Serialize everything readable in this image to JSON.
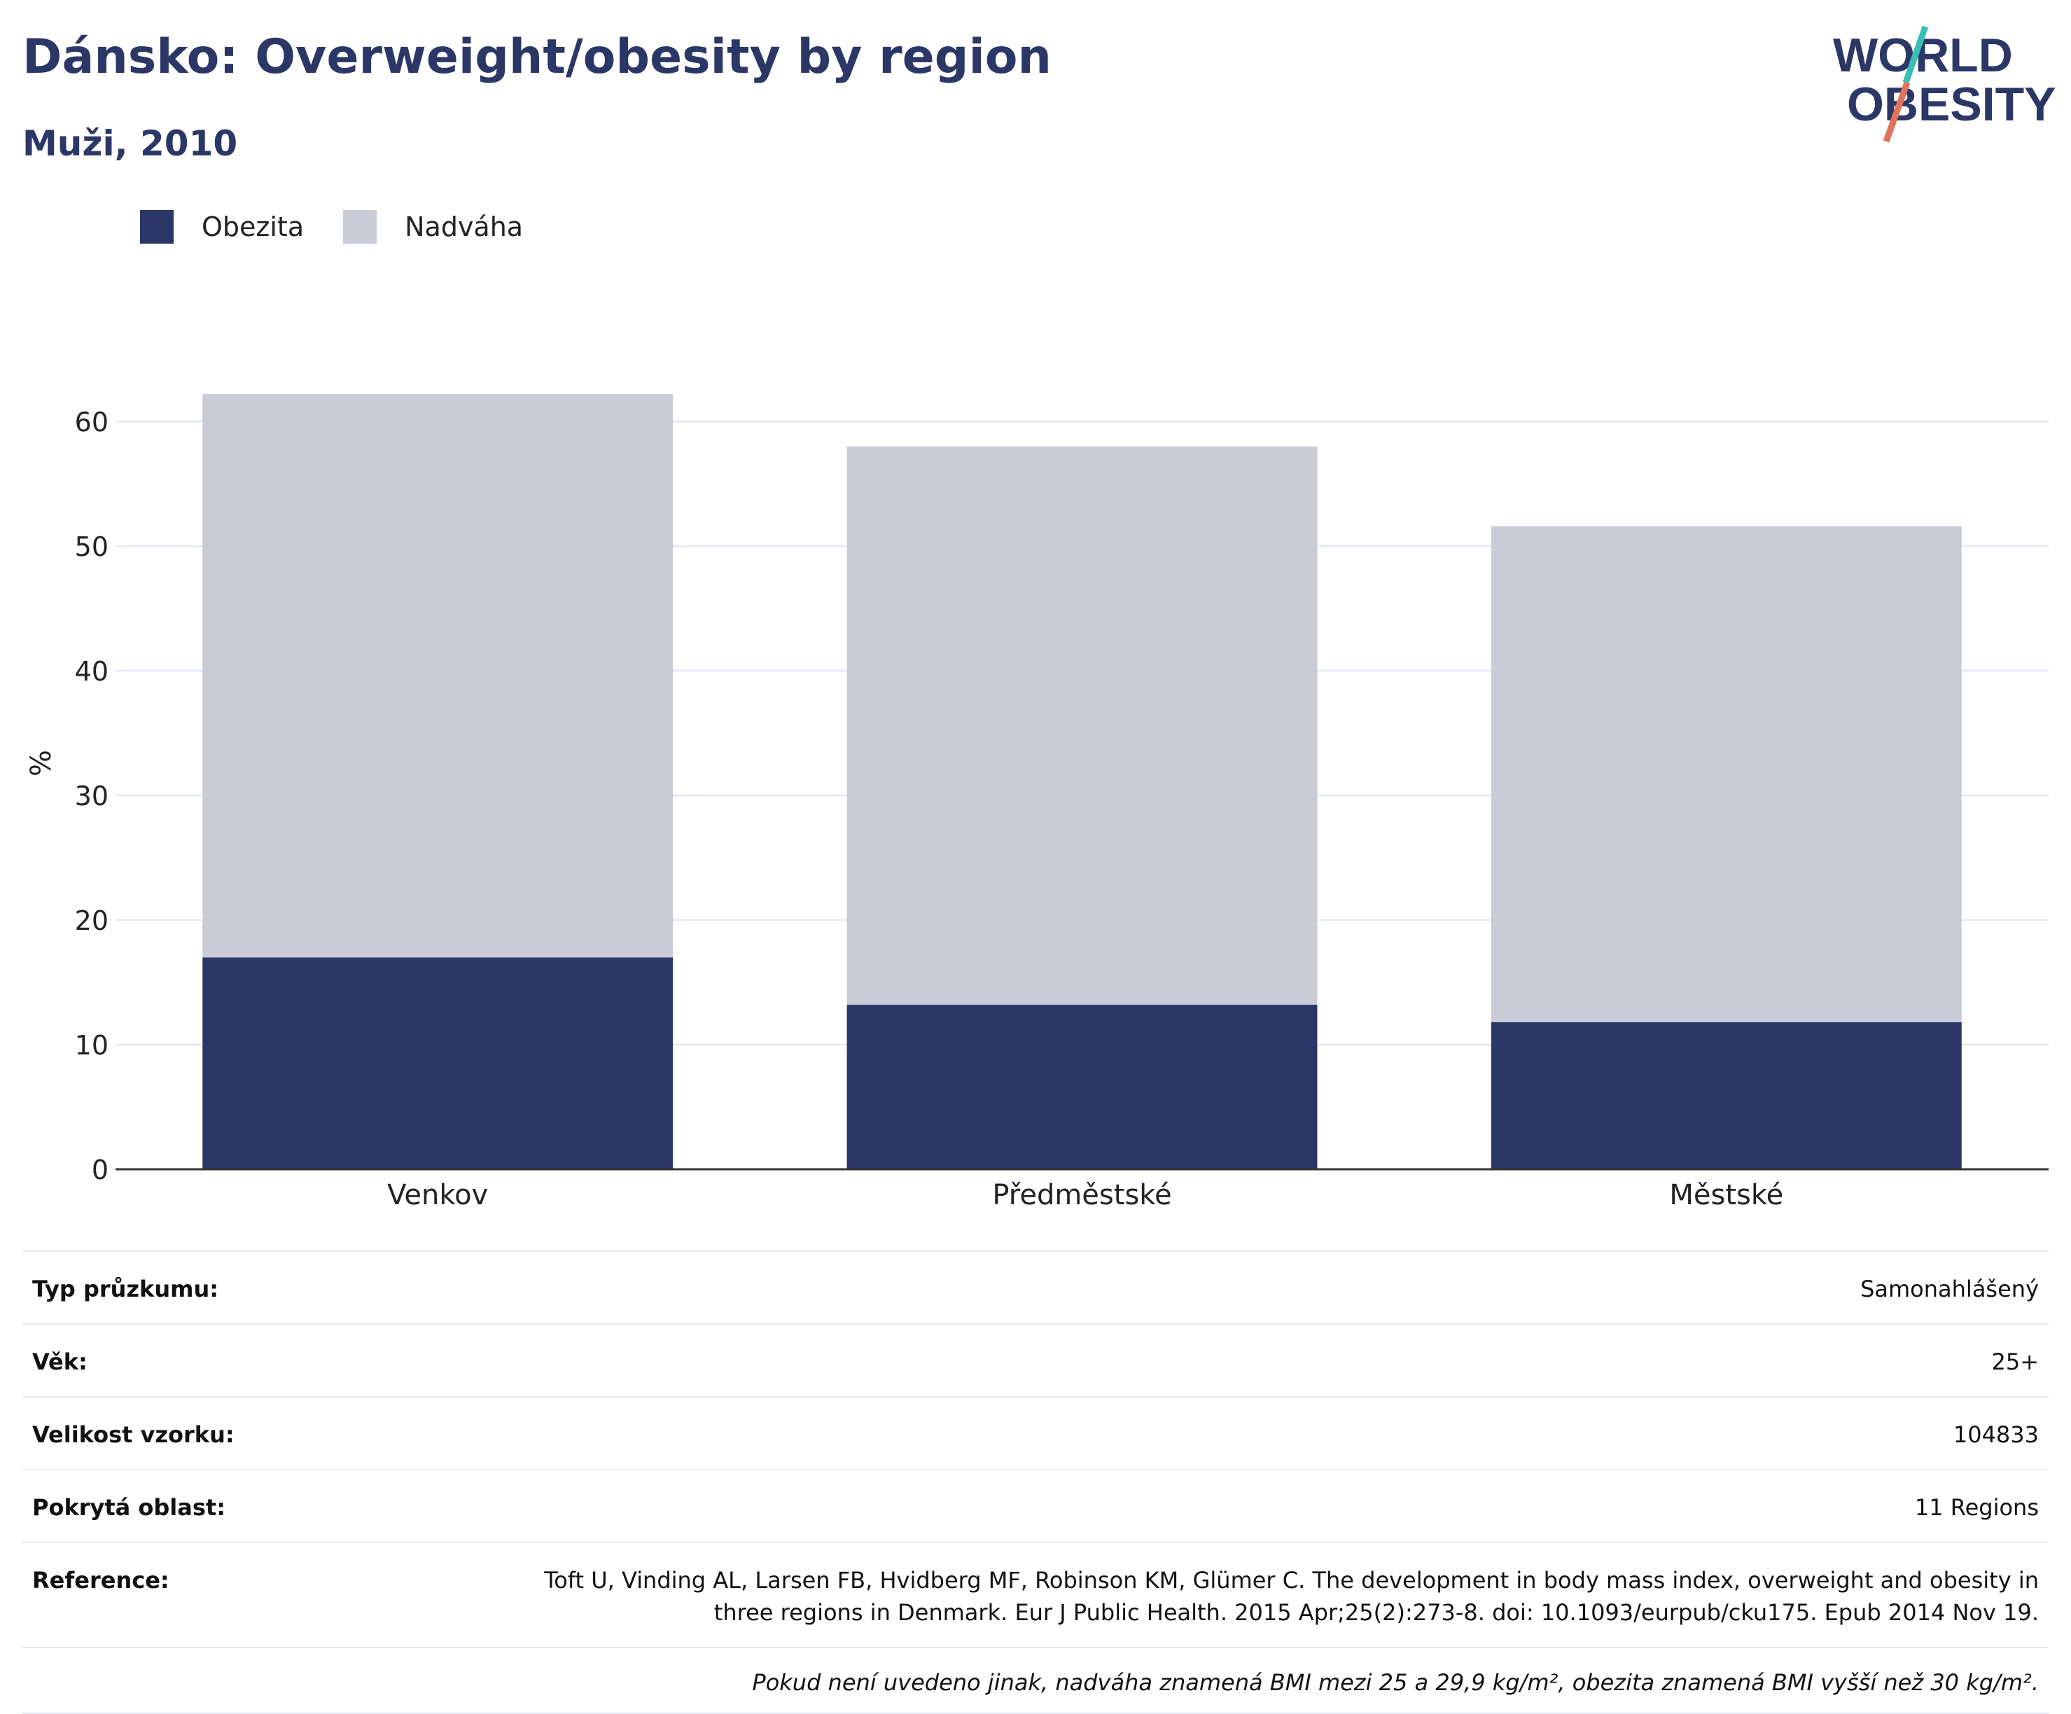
{
  "header": {
    "title": "Dánsko: Overweight/obesity by region",
    "subtitle": "Muži, 2010"
  },
  "logo": {
    "line1": "WORLD",
    "line2": "OBESITY",
    "colors": {
      "text": "#2b3766",
      "slash_top": "#3bbfb5",
      "slash_bottom": "#e2725b"
    }
  },
  "colors": {
    "obesity": "#2b3766",
    "overweight": "#c9cbd7",
    "grid": "#e6e9f0",
    "axis": "#333333"
  },
  "chart_data": {
    "type": "bar",
    "stacked": true,
    "categories": [
      "Venkov",
      "Předměstské",
      "Městské"
    ],
    "series": [
      {
        "name": "Obezita",
        "values": [
          17.0,
          13.2,
          11.8
        ],
        "color": "#2b3766"
      },
      {
        "name": "Nadváha",
        "values": [
          45.2,
          44.8,
          39.8
        ],
        "color": "#c9cbd7"
      }
    ],
    "ylabel": "%",
    "xlabel": "",
    "ylim": [
      0,
      65
    ],
    "yticks": [
      0,
      10,
      20,
      30,
      40,
      50,
      60
    ],
    "grid": true,
    "legend": "top-left"
  },
  "info": {
    "rows": [
      {
        "label": "Typ průzkumu:",
        "value": "Samonahlášený"
      },
      {
        "label": "Věk:",
        "value": "25+"
      },
      {
        "label": "Velikost vzorku:",
        "value": "104833"
      },
      {
        "label": "Pokrytá oblast:",
        "value": "11 Regions"
      }
    ],
    "reference_label": "Reference:",
    "reference_text": "Toft U, Vinding AL, Larsen FB, Hvidberg MF, Robinson KM, Glümer C. The development in body mass index, overweight and obesity in three regions in Denmark. Eur J Public Health. 2015 Apr;25(2):273-8. doi: 10.1093/eurpub/cku175. Epub 2014 Nov 19.",
    "note": "Pokud není uvedeno jinak, nadváha znamená BMI mezi 25 a 29,9 kg/m², obezita znamená BMI vyšší než 30 kg/m²."
  }
}
